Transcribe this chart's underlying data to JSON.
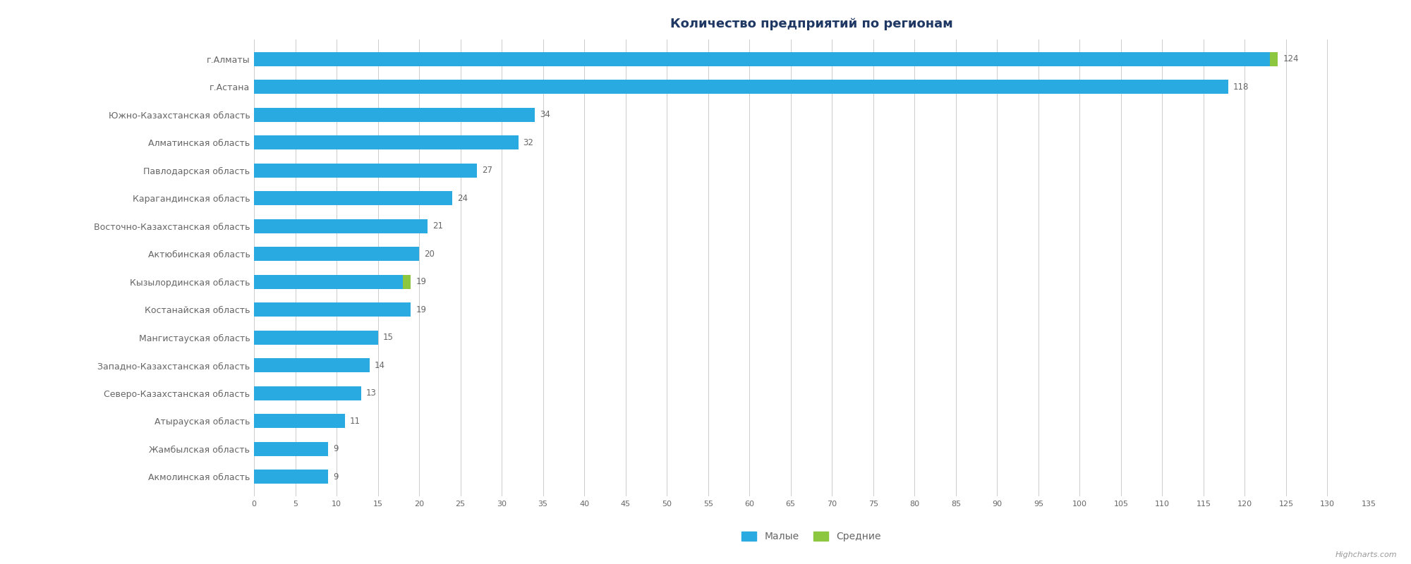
{
  "title": "Количество предприятий по регионам",
  "categories": [
    "Акмолинская область",
    "Жамбылская область",
    "Атырауская область",
    "Северо-Казахстанская область",
    "Западно-Казахстанская область",
    "Мангистауская область",
    "Костанайская область",
    "Кызылординская область",
    "Актюбинская область",
    "Восточно-Казахстанская область",
    "Карагандинская область",
    "Павлодарская область",
    "Алматинская область",
    "Южно-Казахстанская область",
    "г.Астана",
    "г.Алматы"
  ],
  "blue_values": [
    9,
    9,
    11,
    13,
    14,
    15,
    19,
    18,
    20,
    21,
    24,
    27,
    32,
    34,
    118,
    123
  ],
  "green_values": [
    0,
    0,
    0,
    0,
    0,
    0,
    0,
    1,
    0,
    0,
    0,
    0,
    0,
    0,
    0,
    1
  ],
  "total_labels": [
    9,
    9,
    11,
    13,
    14,
    15,
    19,
    19,
    20,
    21,
    24,
    27,
    32,
    34,
    118,
    124
  ],
  "blue_color": "#29ABE2",
  "green_color": "#8DC63F",
  "title_color": "#1F3864",
  "label_color": "#666666",
  "value_color": "#666666",
  "background_color": "#FFFFFF",
  "xlim": [
    0,
    135
  ],
  "xticks": [
    0,
    5,
    10,
    15,
    20,
    25,
    30,
    35,
    40,
    45,
    50,
    55,
    60,
    65,
    70,
    75,
    80,
    85,
    90,
    95,
    100,
    105,
    110,
    115,
    120,
    125,
    130,
    135
  ],
  "legend_labels": [
    "Малые",
    "Средние"
  ],
  "watermark": "Highcharts.com",
  "title_fontsize": 13,
  "label_fontsize": 9,
  "value_fontsize": 8.5,
  "bar_height": 0.5
}
